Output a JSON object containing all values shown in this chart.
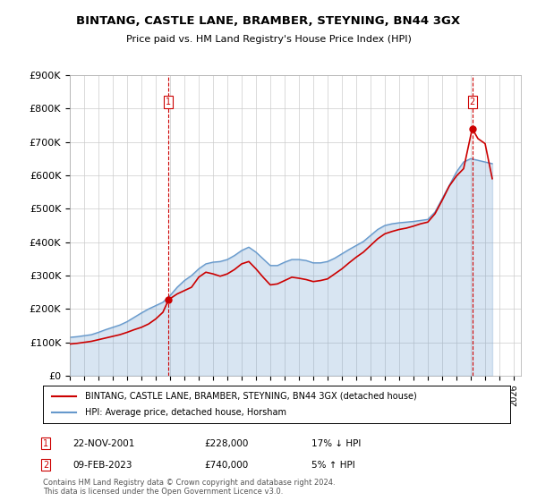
{
  "title": "BINTANG, CASTLE LANE, BRAMBER, STEYNING, BN44 3GX",
  "subtitle": "Price paid vs. HM Land Registry's House Price Index (HPI)",
  "legend_line1": "BINTANG, CASTLE LANE, BRAMBER, STEYNING, BN44 3GX (detached house)",
  "legend_line2": "HPI: Average price, detached house, Horsham",
  "annotation1_label": "1",
  "annotation1_date": "22-NOV-2001",
  "annotation1_price": "£228,000",
  "annotation1_hpi": "17% ↓ HPI",
  "annotation2_label": "2",
  "annotation2_date": "09-FEB-2023",
  "annotation2_price": "£740,000",
  "annotation2_hpi": "5% ↑ HPI",
  "footer": "Contains HM Land Registry data © Crown copyright and database right 2024.\nThis data is licensed under the Open Government Licence v3.0.",
  "price_color": "#cc0000",
  "hpi_color": "#6699cc",
  "annotation_color": "#cc0000",
  "ylim": [
    0,
    900000
  ],
  "yticks": [
    0,
    100000,
    200000,
    300000,
    400000,
    500000,
    600000,
    700000,
    800000,
    900000
  ],
  "ytick_labels": [
    "£0",
    "£100K",
    "£200K",
    "£300K",
    "£400K",
    "£500K",
    "£600K",
    "£700K",
    "£800K",
    "£900K"
  ],
  "xmin": 1995.0,
  "xmax": 2026.5,
  "sale1_x": 2001.9,
  "sale1_y": 228000,
  "sale2_x": 2023.1,
  "sale2_y": 740000,
  "hpi_x": [
    1995.0,
    1995.5,
    1996.0,
    1996.5,
    1997.0,
    1997.5,
    1998.0,
    1998.5,
    1999.0,
    1999.5,
    2000.0,
    2000.5,
    2001.0,
    2001.5,
    2002.0,
    2002.5,
    2003.0,
    2003.5,
    2004.0,
    2004.5,
    2005.0,
    2005.5,
    2006.0,
    2006.5,
    2007.0,
    2007.5,
    2008.0,
    2008.5,
    2009.0,
    2009.5,
    2010.0,
    2010.5,
    2011.0,
    2011.5,
    2012.0,
    2012.5,
    2013.0,
    2013.5,
    2014.0,
    2014.5,
    2015.0,
    2015.5,
    2016.0,
    2016.5,
    2017.0,
    2017.5,
    2018.0,
    2018.5,
    2019.0,
    2019.5,
    2020.0,
    2020.5,
    2021.0,
    2021.5,
    2022.0,
    2022.5,
    2023.0,
    2023.5,
    2024.0,
    2024.5
  ],
  "hpi_y": [
    115000,
    117000,
    120000,
    123000,
    130000,
    138000,
    145000,
    152000,
    162000,
    175000,
    188000,
    200000,
    210000,
    220000,
    240000,
    265000,
    285000,
    300000,
    320000,
    335000,
    340000,
    342000,
    348000,
    360000,
    375000,
    385000,
    370000,
    350000,
    330000,
    330000,
    340000,
    348000,
    348000,
    345000,
    338000,
    338000,
    342000,
    352000,
    365000,
    378000,
    390000,
    402000,
    420000,
    438000,
    450000,
    455000,
    458000,
    460000,
    462000,
    465000,
    468000,
    490000,
    530000,
    570000,
    610000,
    640000,
    650000,
    645000,
    640000,
    635000
  ],
  "price_x": [
    1995.0,
    1995.5,
    1996.0,
    1996.5,
    1997.0,
    1997.5,
    1998.0,
    1998.5,
    1999.0,
    1999.5,
    2000.0,
    2000.5,
    2001.0,
    2001.5,
    2001.9,
    2002.5,
    2003.0,
    2003.5,
    2004.0,
    2004.5,
    2005.0,
    2005.5,
    2006.0,
    2006.5,
    2007.0,
    2007.5,
    2008.0,
    2008.5,
    2009.0,
    2009.5,
    2010.0,
    2010.5,
    2011.0,
    2011.5,
    2012.0,
    2012.5,
    2013.0,
    2013.5,
    2014.0,
    2014.5,
    2015.0,
    2015.5,
    2016.0,
    2016.5,
    2017.0,
    2017.5,
    2018.0,
    2018.5,
    2019.0,
    2019.5,
    2020.0,
    2020.5,
    2021.0,
    2021.5,
    2022.0,
    2022.5,
    2023.1,
    2023.5,
    2024.0,
    2024.5
  ],
  "price_y": [
    95000,
    97000,
    100000,
    103000,
    108000,
    113000,
    118000,
    123000,
    130000,
    138000,
    145000,
    155000,
    170000,
    190000,
    228000,
    245000,
    255000,
    265000,
    295000,
    310000,
    305000,
    298000,
    305000,
    318000,
    335000,
    342000,
    320000,
    295000,
    272000,
    275000,
    285000,
    295000,
    292000,
    288000,
    282000,
    285000,
    290000,
    305000,
    320000,
    338000,
    355000,
    370000,
    390000,
    410000,
    425000,
    432000,
    438000,
    442000,
    448000,
    455000,
    460000,
    485000,
    525000,
    568000,
    598000,
    620000,
    740000,
    710000,
    695000,
    590000
  ]
}
